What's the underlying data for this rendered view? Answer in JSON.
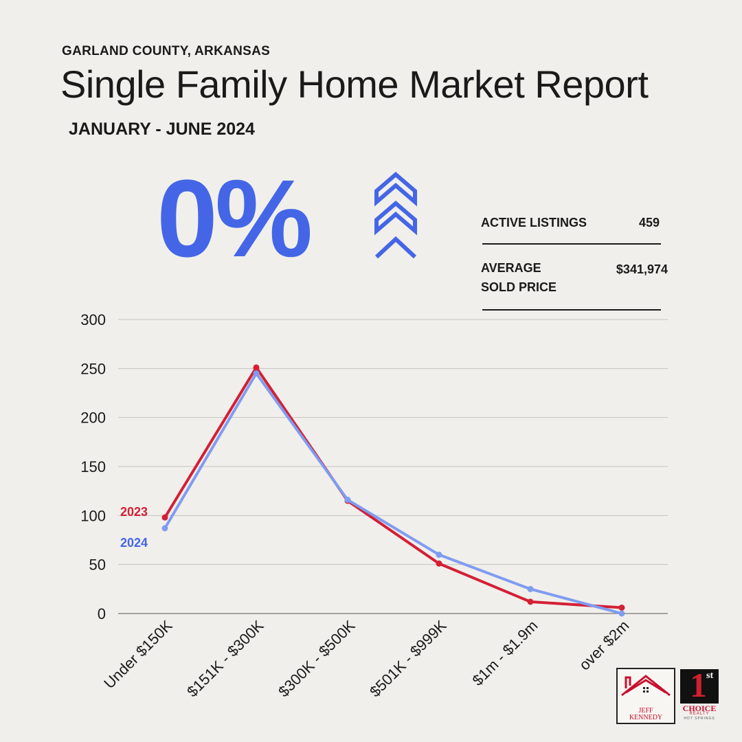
{
  "header": {
    "county": "GARLAND COUNTY, ARKANSAS",
    "title": "Single Family Home Market Report",
    "period": "JANUARY - JUNE 2024"
  },
  "headline": {
    "percent": "0%",
    "trend_icon": "triple-chevron-up-icon",
    "accent_color": "#4466e6"
  },
  "stats": {
    "active_listings_label": "ACTIVE LISTINGS",
    "active_listings_value": "459",
    "avg_price_label_line1": "AVERAGE",
    "avg_price_label_line2": "SOLD PRICE",
    "avg_price_value": "$341,974"
  },
  "chart_data": {
    "type": "line",
    "categories": [
      "Under $150K",
      "$151K - $300K",
      "$300K - $500K",
      "$501K - $999K",
      "$1m - $1.9m",
      "over $2m"
    ],
    "ylim": [
      0,
      300
    ],
    "yticks": [
      0,
      50,
      100,
      150,
      200,
      250,
      300
    ],
    "grid": true,
    "series": [
      {
        "name": "2023",
        "color": "#d41f35",
        "values": [
          98,
          251,
          115,
          51,
          12,
          6
        ]
      },
      {
        "name": "2024",
        "color": "#7f9cf0",
        "label_color": "#4466e6",
        "values": [
          87,
          245,
          116,
          60,
          25,
          0
        ]
      }
    ]
  },
  "logos": {
    "agent_line1": "JEFF",
    "agent_line2": "KENNEDY",
    "brokerage_one": "1",
    "brokerage_st": "st",
    "brokerage_choice": "CHOICE",
    "brokerage_realty": "REALTY",
    "brokerage_city": "HOT SPRINGS"
  }
}
